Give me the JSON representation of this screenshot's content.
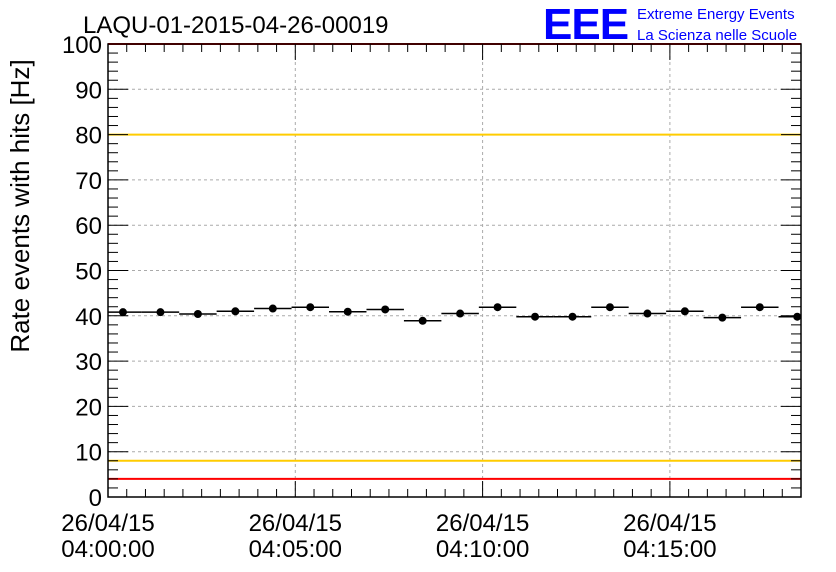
{
  "chart_data": {
    "type": "scatter",
    "title": "LAQU-01-2015-04-26-00019",
    "ylabel": "Rate events with hits [Hz]",
    "xlabel": "",
    "ylim": [
      0,
      100
    ],
    "yticks": [
      0,
      10,
      20,
      30,
      40,
      50,
      60,
      70,
      80,
      90,
      100
    ],
    "xlim_minutes": [
      0,
      18.5
    ],
    "xticks": [
      {
        "minute": 0,
        "date": "26/04/15",
        "time": "04:00:00"
      },
      {
        "minute": 5,
        "date": "26/04/15",
        "time": "04:05:00"
      },
      {
        "minute": 10,
        "date": "26/04/15",
        "time": "04:10:00"
      },
      {
        "minute": 15,
        "date": "26/04/15",
        "time": "04:15:00"
      }
    ],
    "grid": true,
    "bin_width_minutes": 1.0,
    "series": [
      {
        "x_minutes": [
          0.4,
          1.4,
          2.4,
          3.4,
          4.4,
          5.4,
          6.4,
          7.4,
          8.4,
          9.4,
          10.4,
          11.4,
          12.4,
          13.4,
          14.4,
          15.4,
          16.4,
          17.4,
          18.4
        ],
        "values": [
          40.8,
          40.8,
          40.4,
          41.0,
          41.6,
          41.9,
          40.9,
          41.4,
          38.9,
          40.5,
          41.9,
          39.8,
          39.8,
          41.9,
          40.5,
          41.0,
          39.6,
          41.9,
          39.8
        ]
      }
    ],
    "reference_lines": [
      {
        "value": 100,
        "color": "#ff0000"
      },
      {
        "value": 80,
        "color": "#ffcc00"
      },
      {
        "value": 8,
        "color": "#ffcc00"
      },
      {
        "value": 4,
        "color": "#ff0000"
      }
    ]
  },
  "logo": {
    "mark": "EEE",
    "line1": "Extreme Energy Events",
    "line2": "La Scienza nelle Scuole",
    "color": "#0000ff"
  }
}
